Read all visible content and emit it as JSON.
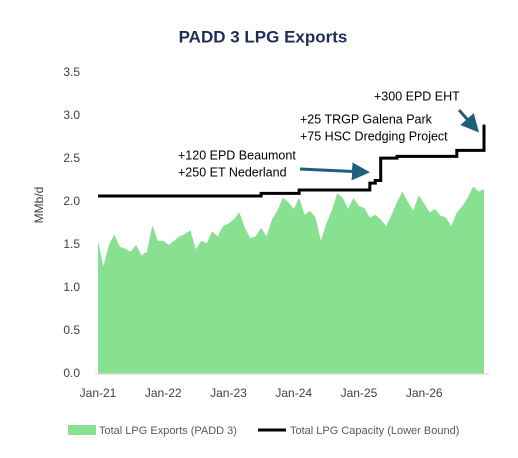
{
  "chart_data": {
    "type": "combo",
    "title": "PADD 3 LPG Exports",
    "y_label": "MMb/d",
    "categories": [
      "Jan-21",
      null,
      null,
      null,
      null,
      null,
      null,
      null,
      null,
      null,
      null,
      null,
      "Jan-22",
      null,
      null,
      null,
      null,
      null,
      null,
      null,
      null,
      null,
      null,
      null,
      "Jan-23",
      null,
      null,
      null,
      null,
      null,
      null,
      null,
      null,
      null,
      null,
      null,
      "Jan-24",
      null,
      null,
      null,
      null,
      null,
      null,
      null,
      null,
      null,
      null,
      null,
      "Jan-25",
      null,
      null,
      null,
      null,
      null,
      null,
      null,
      null,
      null,
      null,
      null,
      "Jan-26",
      null,
      null,
      null,
      null,
      null,
      null,
      null,
      null,
      null,
      null,
      null
    ],
    "series": [
      {
        "name": "Total LPG Exports (PADD 3)",
        "type": "area",
        "color": "#88e190",
        "values": [
          1.55,
          1.25,
          1.5,
          1.62,
          1.48,
          1.46,
          1.42,
          1.5,
          1.38,
          1.42,
          1.73,
          1.55,
          1.55,
          1.5,
          1.55,
          1.6,
          1.63,
          1.67,
          1.45,
          1.55,
          1.52,
          1.66,
          1.6,
          1.72,
          1.75,
          1.8,
          1.88,
          1.7,
          1.58,
          1.6,
          1.7,
          1.6,
          1.8,
          1.9,
          2.05,
          2.0,
          1.92,
          2.05,
          1.85,
          1.9,
          1.82,
          1.55,
          1.75,
          1.9,
          2.1,
          2.05,
          1.92,
          2.05,
          1.95,
          1.93,
          1.82,
          1.85,
          1.8,
          1.72,
          1.85,
          2.0,
          2.12,
          2.0,
          1.9,
          2.08,
          1.98,
          1.88,
          1.92,
          1.84,
          1.82,
          1.72,
          1.88,
          1.95,
          2.05,
          2.18,
          2.12,
          2.15
        ]
      },
      {
        "name": "Total LPG Capacity (Lower Bound)",
        "type": "step",
        "color": "#000000",
        "values": [
          2.07,
          2.07,
          2.07,
          2.07,
          2.07,
          2.07,
          2.07,
          2.07,
          2.07,
          2.07,
          2.07,
          2.07,
          2.07,
          2.07,
          2.07,
          2.07,
          2.07,
          2.07,
          2.07,
          2.07,
          2.07,
          2.07,
          2.07,
          2.07,
          2.07,
          2.07,
          2.07,
          2.07,
          2.07,
          2.07,
          2.1,
          2.1,
          2.1,
          2.1,
          2.1,
          2.1,
          2.1,
          2.14,
          2.14,
          2.14,
          2.14,
          2.14,
          2.14,
          2.14,
          2.14,
          2.14,
          2.14,
          2.14,
          2.14,
          2.14,
          2.22,
          2.25,
          2.51,
          2.51,
          2.51,
          2.53,
          2.53,
          2.53,
          2.53,
          2.53,
          2.53,
          2.53,
          2.53,
          2.53,
          2.53,
          2.53,
          2.6,
          2.6,
          2.6,
          2.6,
          2.6,
          2.9
        ]
      }
    ],
    "annotations": [
      "+120 EPD Beaumont",
      "+250 ET Nederland",
      "+25 TRGP Galena Park",
      "+75 HSC Dredging Project",
      "+300 EPD EHT"
    ],
    "ylim": [
      0,
      3.5
    ],
    "yticks": [
      {
        "value": 0,
        "label": "0.0"
      },
      0.5,
      {
        "value": 1,
        "label": "1.0"
      },
      1.5,
      {
        "value": 2,
        "label": "2.0"
      },
      2.5,
      {
        "value": 3,
        "label": "3.0"
      },
      3.5
    ],
    "legend": "bottom"
  }
}
